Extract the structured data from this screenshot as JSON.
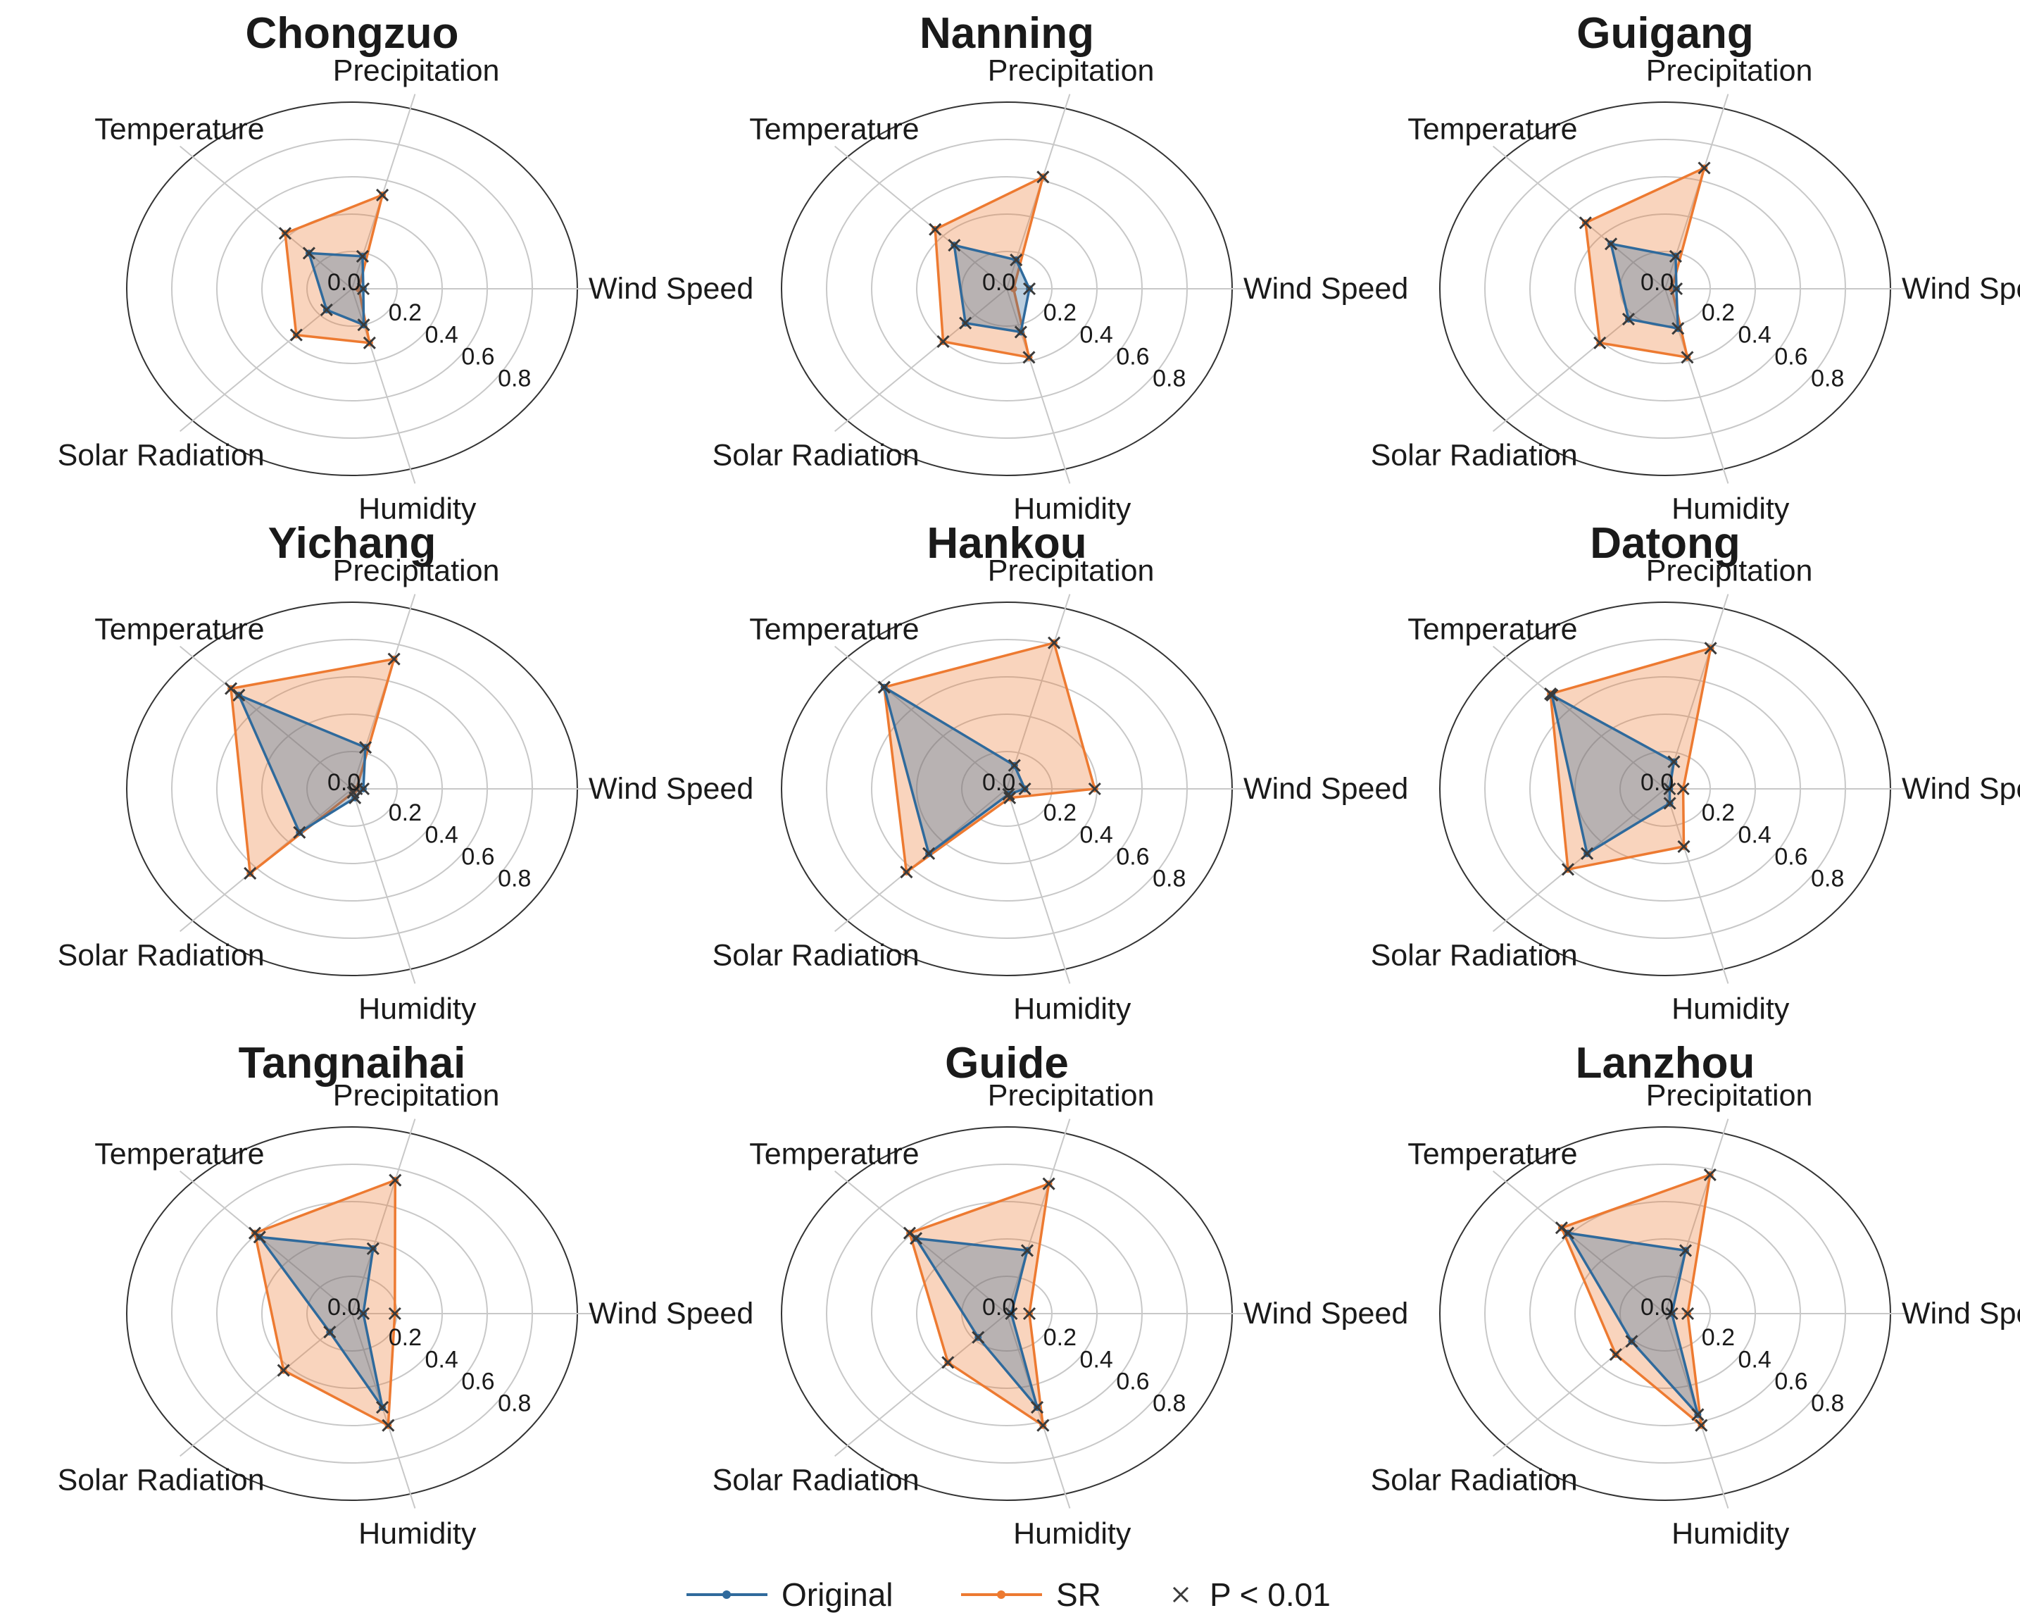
{
  "chart_data": {
    "type": "radar",
    "axes": [
      "Precipitation",
      "Wind Speed",
      "Humidity",
      "Solar Radiation",
      "Temperature"
    ],
    "radial_ticks": [
      "0.0",
      "0.2",
      "0.4",
      "0.6",
      "0.8"
    ],
    "rlim": [
      0,
      1
    ],
    "legend": {
      "placement": "bottom-center",
      "entries": [
        {
          "label": "Original",
          "color": "#2f6a9c"
        },
        {
          "label": "SR",
          "color": "#ed7a31"
        },
        {
          "label": "P < 0.01",
          "marker": "x",
          "color": "#3a3a3a"
        }
      ]
    },
    "panels": [
      {
        "title": "Chongzuo",
        "series": [
          {
            "name": "Original",
            "values": [
              0.18,
              0.05,
              0.2,
              0.16,
              0.27
            ],
            "sig": [
              true,
              true,
              true,
              true,
              true
            ]
          },
          {
            "name": "SR",
            "values": [
              0.52,
              0.03,
              0.3,
              0.35,
              0.42
            ],
            "sig": [
              true,
              false,
              true,
              true,
              true
            ]
          }
        ]
      },
      {
        "title": "Nanning",
        "series": [
          {
            "name": "Original",
            "values": [
              0.16,
              0.1,
              0.24,
              0.26,
              0.33
            ],
            "sig": [
              true,
              true,
              true,
              true,
              true
            ]
          },
          {
            "name": "SR",
            "values": [
              0.62,
              0.03,
              0.38,
              0.4,
              0.45
            ],
            "sig": [
              true,
              false,
              true,
              true,
              true
            ]
          }
        ]
      },
      {
        "title": "Guigang",
        "series": [
          {
            "name": "Original",
            "values": [
              0.18,
              0.05,
              0.22,
              0.23,
              0.34
            ],
            "sig": [
              true,
              true,
              true,
              true,
              true
            ]
          },
          {
            "name": "SR",
            "values": [
              0.67,
              0.03,
              0.38,
              0.41,
              0.5
            ],
            "sig": [
              true,
              false,
              true,
              true,
              true
            ]
          }
        ]
      },
      {
        "title": "Yichang",
        "series": [
          {
            "name": "Original",
            "values": [
              0.23,
              0.05,
              0.05,
              0.33,
              0.71
            ],
            "sig": [
              true,
              true,
              true,
              true,
              true
            ]
          },
          {
            "name": "SR",
            "values": [
              0.72,
              0.02,
              0.02,
              0.64,
              0.76
            ],
            "sig": [
              true,
              true,
              true,
              true,
              true
            ]
          }
        ]
      },
      {
        "title": "Hankou",
        "series": [
          {
            "name": "Original",
            "values": [
              0.13,
              0.08,
              0.03,
              0.49,
              0.77
            ],
            "sig": [
              true,
              true,
              true,
              true,
              true
            ]
          },
          {
            "name": "SR",
            "values": [
              0.81,
              0.39,
              0.05,
              0.63,
              0.77
            ],
            "sig": [
              true,
              true,
              true,
              true,
              true
            ]
          }
        ]
      },
      {
        "title": "Datong",
        "series": [
          {
            "name": "Original",
            "values": [
              0.15,
              0.02,
              0.08,
              0.49,
              0.71
            ],
            "sig": [
              true,
              true,
              true,
              true,
              true
            ]
          },
          {
            "name": "SR",
            "values": [
              0.78,
              0.08,
              0.32,
              0.61,
              0.72
            ],
            "sig": [
              true,
              true,
              true,
              true,
              true
            ]
          }
        ]
      },
      {
        "title": "Tangnaihai",
        "series": [
          {
            "name": "Original",
            "values": [
              0.36,
              0.05,
              0.52,
              0.14,
              0.58
            ],
            "sig": [
              true,
              true,
              true,
              true,
              true
            ]
          },
          {
            "name": "SR",
            "values": [
              0.74,
              0.19,
              0.62,
              0.43,
              0.61
            ],
            "sig": [
              true,
              true,
              true,
              true,
              true
            ]
          }
        ]
      },
      {
        "title": "Guide",
        "series": [
          {
            "name": "Original",
            "values": [
              0.35,
              0.02,
              0.52,
              0.18,
              0.57
            ],
            "sig": [
              true,
              true,
              true,
              true,
              true
            ]
          },
          {
            "name": "SR",
            "values": [
              0.72,
              0.1,
              0.62,
              0.37,
              0.61
            ],
            "sig": [
              true,
              true,
              true,
              true,
              true
            ]
          }
        ]
      },
      {
        "title": "Lanzhou",
        "series": [
          {
            "name": "Original",
            "values": [
              0.35,
              0.03,
              0.56,
              0.21,
              0.61
            ],
            "sig": [
              true,
              true,
              true,
              true,
              true
            ]
          },
          {
            "name": "SR",
            "values": [
              0.77,
              0.1,
              0.62,
              0.31,
              0.65
            ],
            "sig": [
              true,
              true,
              true,
              true,
              true
            ]
          }
        ]
      }
    ]
  }
}
